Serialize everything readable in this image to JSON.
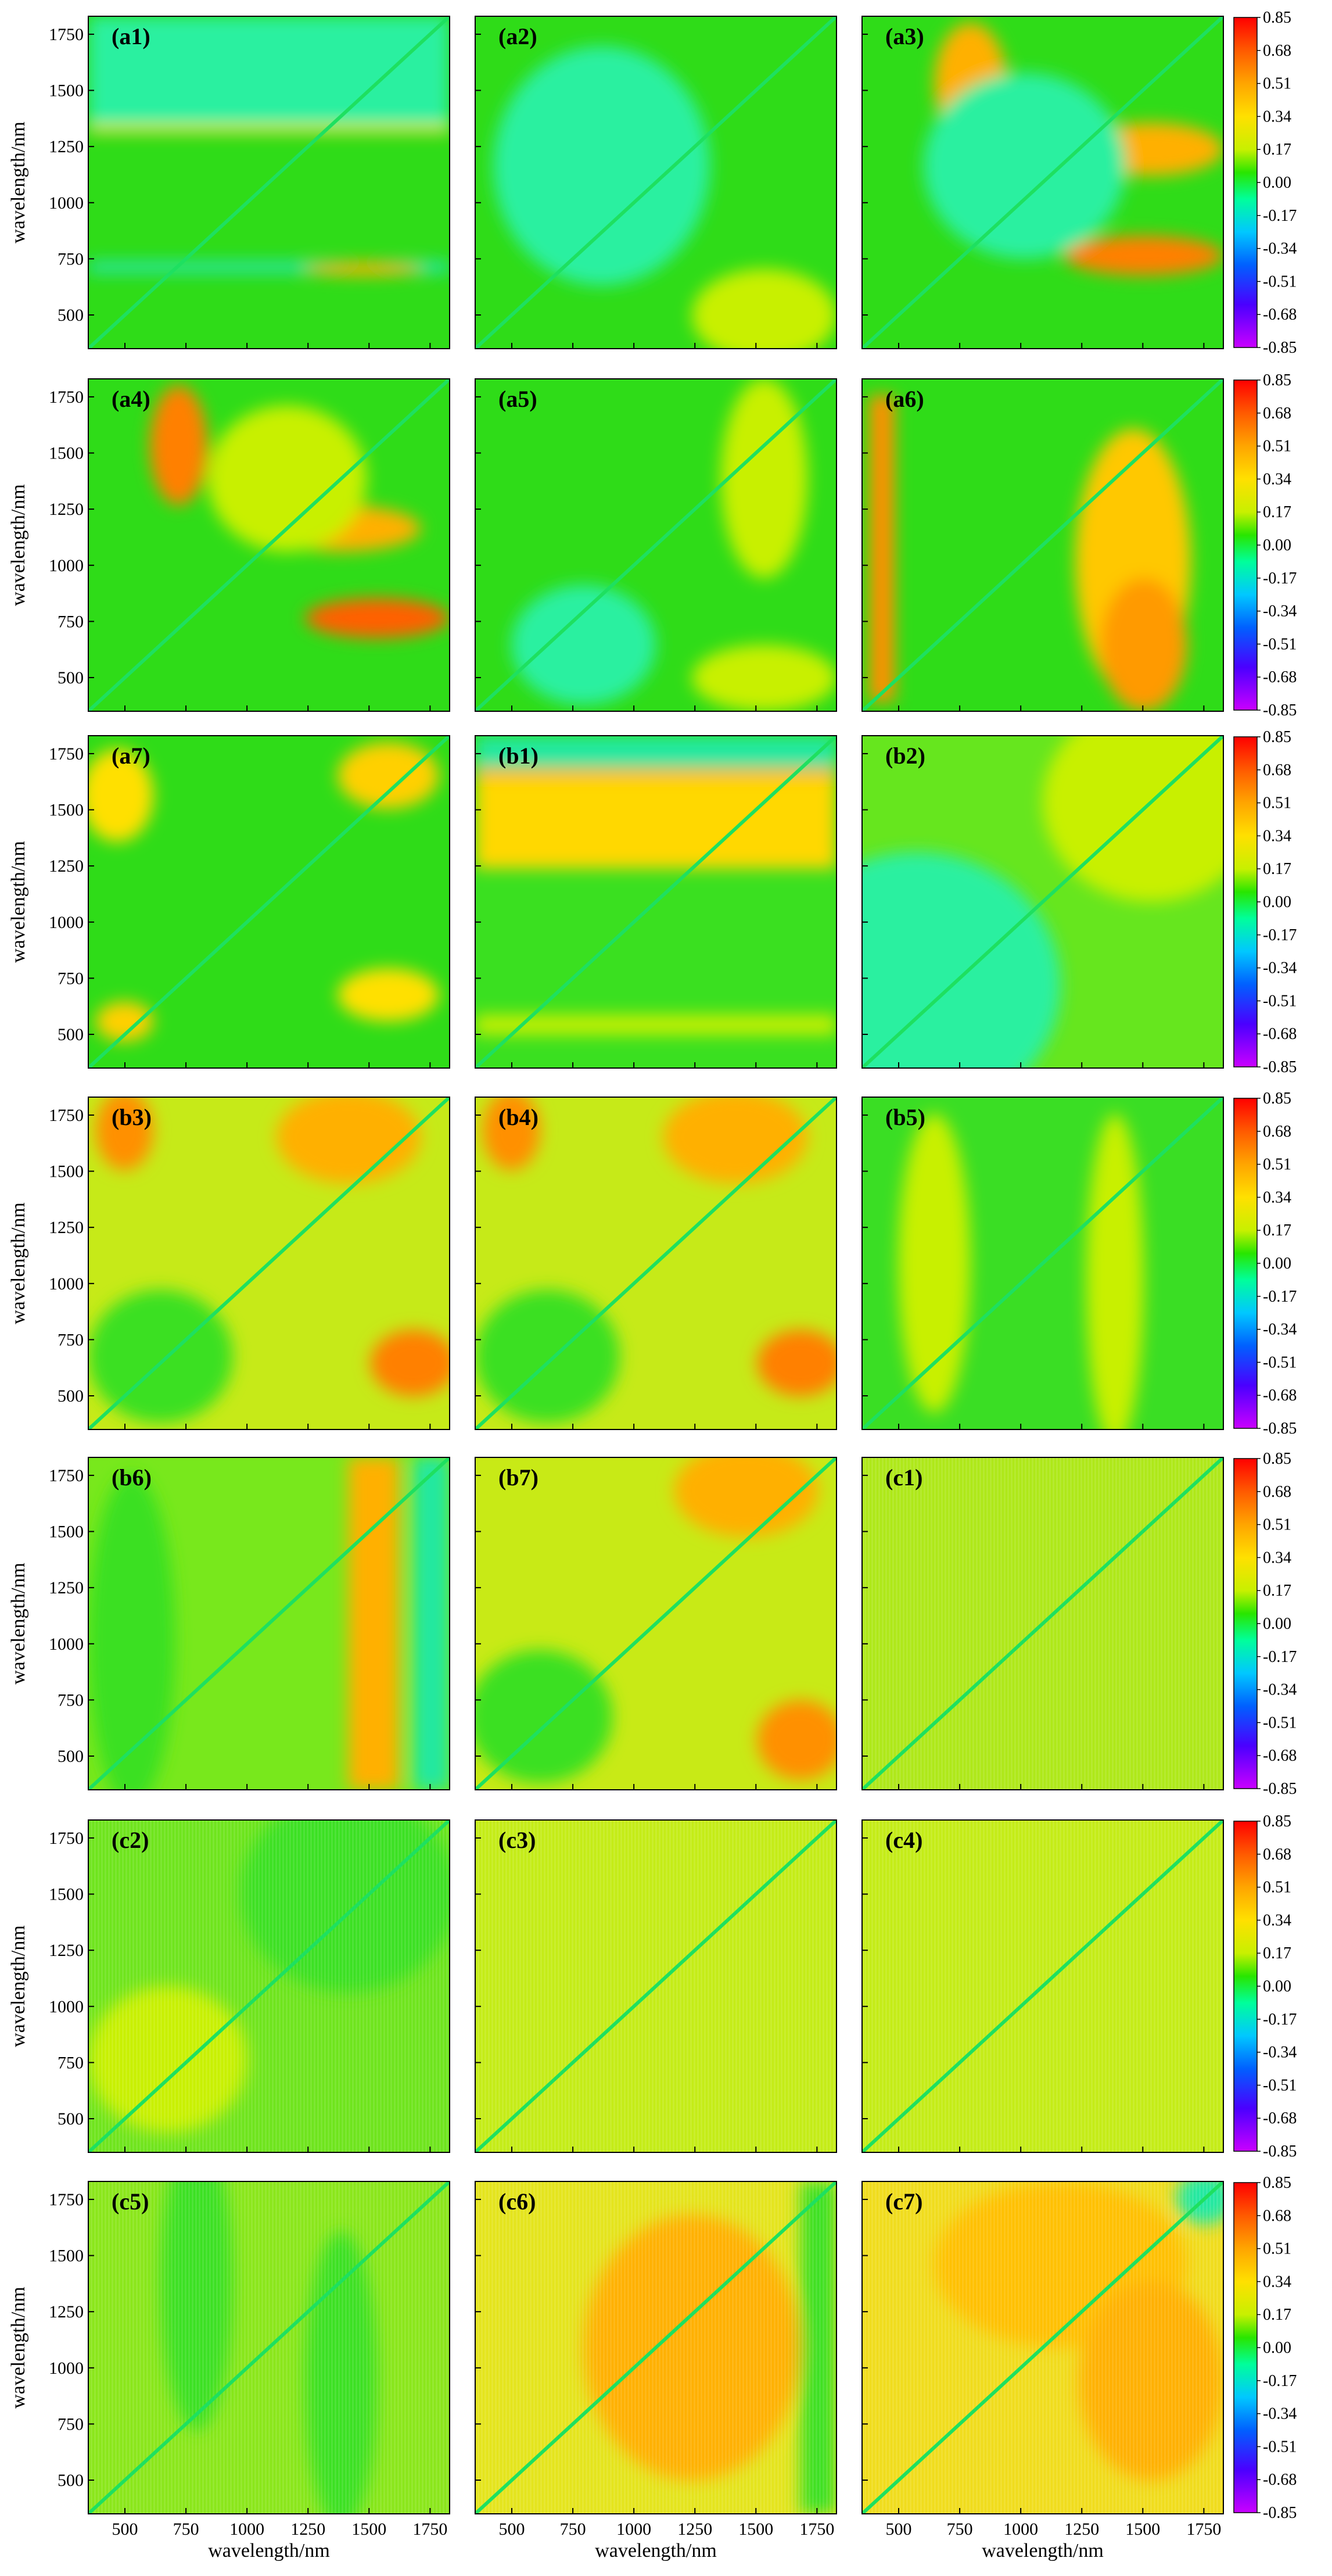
{
  "chart_data": {
    "type": "heatmap",
    "xlabel": "wavelength/nm",
    "ylabel": "wavelength/nm",
    "xlim": [
      350,
      1830
    ],
    "ylim": [
      350,
      1830
    ],
    "x_ticks": [
      "500",
      "750",
      "1000",
      "1250",
      "1500",
      "1750"
    ],
    "y_ticks": [
      "500",
      "750",
      "1000",
      "1250",
      "1500",
      "1750"
    ],
    "x_tick_values": [
      500,
      750,
      1000,
      1250,
      1500,
      1750
    ],
    "y_tick_values": [
      500,
      750,
      1000,
      1250,
      1500,
      1750
    ],
    "colorbar": {
      "min": -0.85,
      "max": 0.85,
      "labels": [
        "0.85",
        "0.68",
        "0.51",
        "0.34",
        "0.17",
        "0.00",
        "-0.17",
        "-0.34",
        "-0.51",
        "-0.68",
        "-0.85"
      ],
      "colors": [
        "#ff0000",
        "#ff5a00",
        "#ffa500",
        "#ffe000",
        "#c8f000",
        "#28e600",
        "#00ff9a",
        "#00c8ff",
        "#0060ff",
        "#4a00ff",
        "#9a00ff",
        "#c900ff"
      ]
    },
    "panels": [
      {
        "id": "a1",
        "label": "(a1)",
        "background": "#2fdc18"
      },
      {
        "id": "a2",
        "label": "(a2)",
        "background": "#2fdc18"
      },
      {
        "id": "a3",
        "label": "(a3)",
        "background": "#2fdc18"
      },
      {
        "id": "a4",
        "label": "(a4)",
        "background": "#2fdc18"
      },
      {
        "id": "a5",
        "label": "(a5)",
        "background": "#2fdc18"
      },
      {
        "id": "a6",
        "label": "(a6)",
        "background": "#2fdc18"
      },
      {
        "id": "a7",
        "label": "(a7)",
        "background": "#2fdc18"
      },
      {
        "id": "b1",
        "label": "(b1)",
        "background": "#3ae020"
      },
      {
        "id": "b2",
        "label": "(b2)",
        "background": "#66e61e"
      },
      {
        "id": "b3",
        "label": "(b3)",
        "background": "#c6ea18"
      },
      {
        "id": "b4",
        "label": "(b4)",
        "background": "#c6ea18"
      },
      {
        "id": "b5",
        "label": "(b5)",
        "background": "#3ade24"
      },
      {
        "id": "b6",
        "label": "(b6)",
        "background": "#78e81c"
      },
      {
        "id": "b7",
        "label": "(b7)",
        "background": "#c8ea16"
      },
      {
        "id": "c1",
        "label": "(c1)",
        "background": "#aee818"
      },
      {
        "id": "c2",
        "label": "(c2)",
        "background": "#6ee41c"
      },
      {
        "id": "c3",
        "label": "(c3)",
        "background": "#c4ec16"
      },
      {
        "id": "c4",
        "label": "(c4)",
        "background": "#c4ec16"
      },
      {
        "id": "c5",
        "label": "(c5)",
        "background": "#8ae61a"
      },
      {
        "id": "c6",
        "label": "(c6)",
        "background": "#e4e41c"
      },
      {
        "id": "c7",
        "label": "(c7)",
        "background": "#f0dc1c"
      }
    ]
  }
}
